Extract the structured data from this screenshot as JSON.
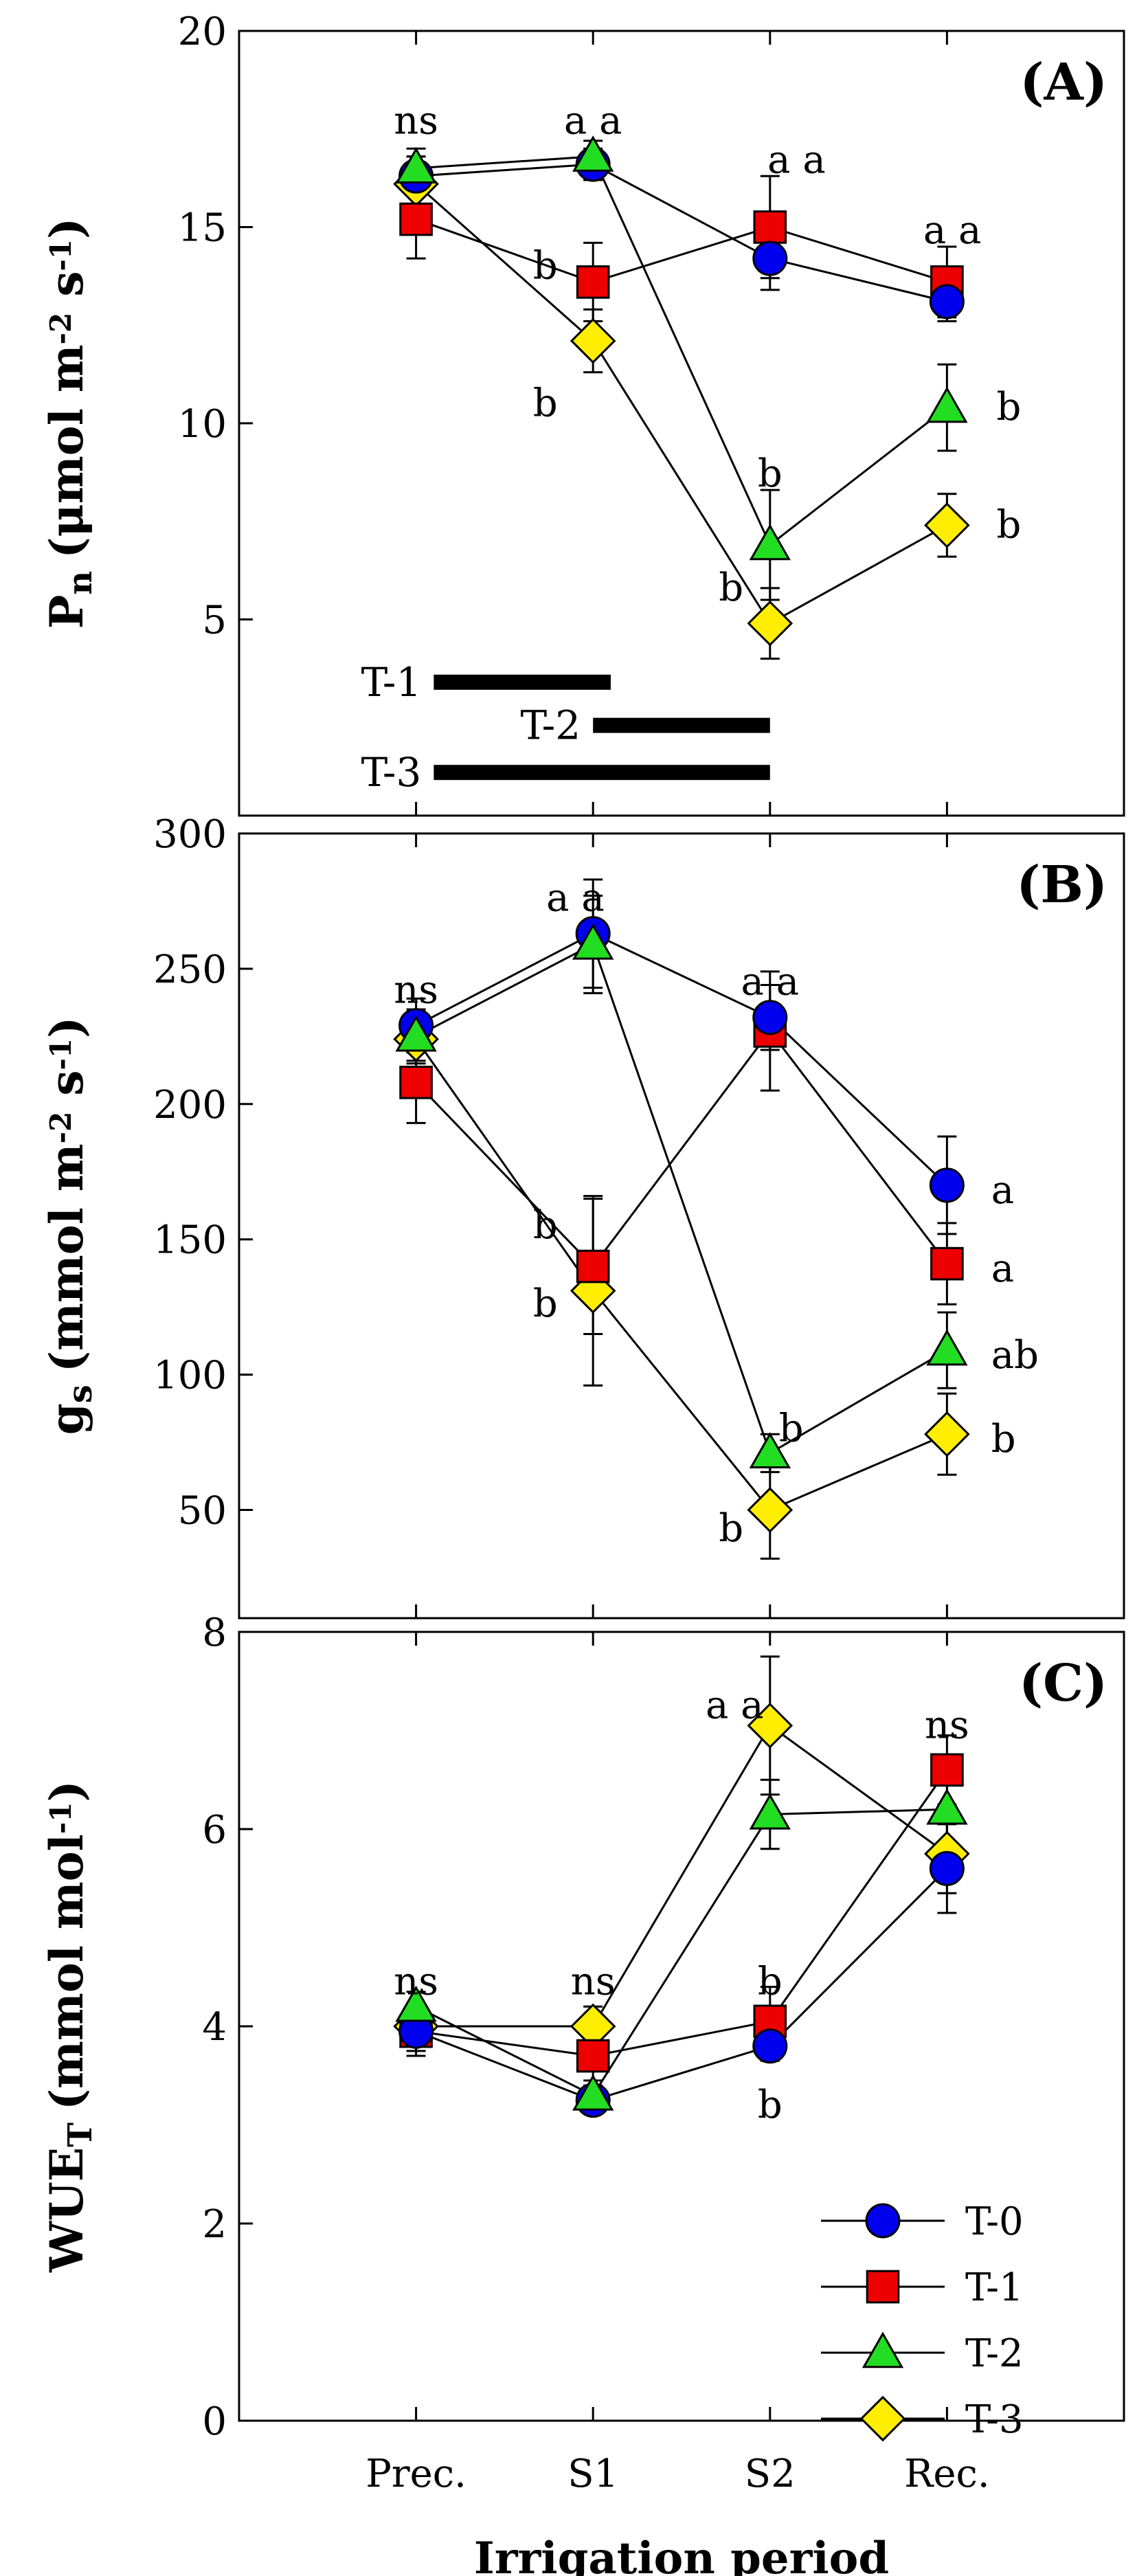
{
  "x_axis": {
    "label": "Irrigation period",
    "categories": [
      "Prec.",
      "S1",
      "S2",
      "Rec."
    ],
    "range": [
      0,
      5
    ]
  },
  "legend": {
    "placement": "bottom-right",
    "entries": [
      {
        "name": "T-0",
        "color": "#0000ee",
        "marker": "circle"
      },
      {
        "name": "T-1",
        "color": "#ee0000",
        "marker": "square"
      },
      {
        "name": "T-2",
        "color": "#22dd22",
        "marker": "triangle"
      },
      {
        "name": "T-3",
        "color": "#ffee00",
        "marker": "diamond"
      }
    ]
  },
  "chart_data": [
    {
      "type": "line",
      "panel": "(A)",
      "ylabel_main": "P",
      "ylabel_sub": "n",
      "ylabel_unit": "(μmol m",
      "ylabel_unit_exp": "-2",
      "ylabel_unit_mid": " s",
      "ylabel_unit_exp2": "-1",
      "ylabel_unit_end": ")",
      "ylim": [
        0,
        20
      ],
      "yticks": [
        "5",
        "10",
        "15",
        "20"
      ],
      "categories": [
        "Prec.",
        "S1",
        "S2",
        "Rec."
      ],
      "series": [
        {
          "name": "T-0",
          "values": [
            16.3,
            16.6,
            14.2,
            13.1
          ],
          "errors": [
            0.5,
            0.4,
            0.8,
            0.5
          ]
        },
        {
          "name": "T-1",
          "values": [
            15.2,
            13.6,
            15.0,
            13.6
          ],
          "errors": [
            1.0,
            1.0,
            1.3,
            0.9
          ]
        },
        {
          "name": "T-2",
          "values": [
            16.5,
            16.8,
            6.9,
            10.4
          ],
          "errors": [
            0.5,
            0.4,
            1.4,
            1.1
          ]
        },
        {
          "name": "T-3",
          "values": [
            16.1,
            12.1,
            4.9,
            7.4
          ],
          "errors": [
            0.7,
            0.8,
            0.9,
            0.8
          ]
        }
      ],
      "annotations": [
        {
          "text": "ns",
          "x": 1,
          "y": 17.7,
          "anchor": "middle"
        },
        {
          "text": "a a",
          "x": 2,
          "y": 17.7,
          "anchor": "middle"
        },
        {
          "text": "b",
          "x": 1.8,
          "y": 14.0,
          "anchor": "end"
        },
        {
          "text": "b",
          "x": 1.8,
          "y": 10.5,
          "anchor": "end"
        },
        {
          "text": "a a",
          "x": 3.15,
          "y": 16.7,
          "anchor": "middle"
        },
        {
          "text": "b",
          "x": 3.0,
          "y": 8.7,
          "anchor": "middle"
        },
        {
          "text": "b",
          "x": 2.85,
          "y": 5.8,
          "anchor": "end"
        },
        {
          "text": "a a",
          "x": 4.03,
          "y": 14.9,
          "anchor": "middle"
        },
        {
          "text": "b",
          "x": 4.28,
          "y": 10.4,
          "anchor": "start"
        },
        {
          "text": "b",
          "x": 4.28,
          "y": 7.4,
          "anchor": "start"
        }
      ],
      "treatment_bars": [
        {
          "label": "T-1",
          "start": 1.1,
          "end": 2.1,
          "y": 3.4
        },
        {
          "label": "T-2",
          "start": 2.0,
          "end": 3.0,
          "y": 2.3
        },
        {
          "label": "T-3",
          "start": 1.1,
          "end": 3.0,
          "y": 1.1
        }
      ]
    },
    {
      "type": "line",
      "panel": "(B)",
      "ylabel_main": "g",
      "ylabel_sub": "s",
      "ylabel_unit": "(mmol m",
      "ylabel_unit_exp": "-2",
      "ylabel_unit_mid": " s",
      "ylabel_unit_exp2": "-1",
      "ylabel_unit_end": ")",
      "ylim": [
        10,
        300
      ],
      "yticks": [
        "50",
        "100",
        "150",
        "200",
        "250",
        "300"
      ],
      "categories": [
        "Prec.",
        "S1",
        "S2",
        "Rec."
      ],
      "series": [
        {
          "name": "T-0",
          "values": [
            229,
            263,
            232,
            170
          ],
          "errors": [
            10,
            20,
            12,
            18
          ]
        },
        {
          "name": "T-1",
          "values": [
            208,
            140,
            227,
            141
          ],
          "errors": [
            15,
            25,
            22,
            15
          ]
        },
        {
          "name": "T-2",
          "values": [
            225,
            259,
            71,
            109
          ],
          "errors": [
            10,
            18,
            7,
            14
          ]
        },
        {
          "name": "T-3",
          "values": [
            224,
            131,
            50,
            78
          ],
          "errors": [
            8,
            35,
            18,
            15
          ]
        }
      ],
      "annotations": [
        {
          "text": "ns",
          "x": 1,
          "y": 242,
          "anchor": "middle"
        },
        {
          "text": "a a",
          "x": 1.9,
          "y": 276,
          "anchor": "middle"
        },
        {
          "text": "b",
          "x": 1.8,
          "y": 155,
          "anchor": "end"
        },
        {
          "text": "b",
          "x": 1.8,
          "y": 126,
          "anchor": "end"
        },
        {
          "text": "a a",
          "x": 3.0,
          "y": 245,
          "anchor": "middle"
        },
        {
          "text": "b",
          "x": 3.12,
          "y": 80,
          "anchor": "middle"
        },
        {
          "text": "b",
          "x": 2.85,
          "y": 43,
          "anchor": "end"
        },
        {
          "text": "a",
          "x": 4.25,
          "y": 168,
          "anchor": "start"
        },
        {
          "text": "a",
          "x": 4.25,
          "y": 139,
          "anchor": "start"
        },
        {
          "text": "ab",
          "x": 4.25,
          "y": 107,
          "anchor": "start"
        },
        {
          "text": "b",
          "x": 4.25,
          "y": 76,
          "anchor": "start"
        }
      ]
    },
    {
      "type": "line",
      "panel": "(C)",
      "ylabel_main": "WUE",
      "ylabel_sub": "T",
      "ylabel_unit": "(mmol mol",
      "ylabel_unit_exp": "-1",
      "ylabel_unit_mid": "",
      "ylabel_unit_exp2": "",
      "ylabel_unit_end": ")",
      "ylim": [
        0,
        8
      ],
      "yticks": [
        "0",
        "2",
        "4",
        "6",
        "8"
      ],
      "categories": [
        "Prec.",
        "S1",
        "S2",
        "Rec."
      ],
      "series": [
        {
          "name": "T-0",
          "values": [
            3.95,
            3.25,
            3.8,
            5.6
          ],
          "errors": [
            0.2,
            0.1,
            0.15,
            0.45
          ]
        },
        {
          "name": "T-1",
          "values": [
            3.95,
            3.7,
            4.05,
            6.6
          ],
          "errors": [
            0.25,
            0.3,
            0.35,
            0.35
          ]
        },
        {
          "name": "T-2",
          "values": [
            4.2,
            3.3,
            6.15,
            6.2
          ],
          "errors": [
            0.15,
            0.15,
            0.35,
            0.4
          ]
        },
        {
          "name": "T-3",
          "values": [
            4.0,
            4.0,
            7.05,
            5.75
          ],
          "errors": [
            0.15,
            0.2,
            0.7,
            0.4
          ]
        }
      ],
      "annotations": [
        {
          "text": "ns",
          "x": 1,
          "y": 4.45,
          "anchor": "middle"
        },
        {
          "text": "ns",
          "x": 2,
          "y": 4.45,
          "anchor": "middle"
        },
        {
          "text": "a a",
          "x": 2.8,
          "y": 7.25,
          "anchor": "middle"
        },
        {
          "text": "b",
          "x": 3.0,
          "y": 4.45,
          "anchor": "middle"
        },
        {
          "text": "b",
          "x": 3.0,
          "y": 3.2,
          "anchor": "middle"
        },
        {
          "text": "ns",
          "x": 4,
          "y": 7.05,
          "anchor": "middle"
        }
      ]
    }
  ]
}
